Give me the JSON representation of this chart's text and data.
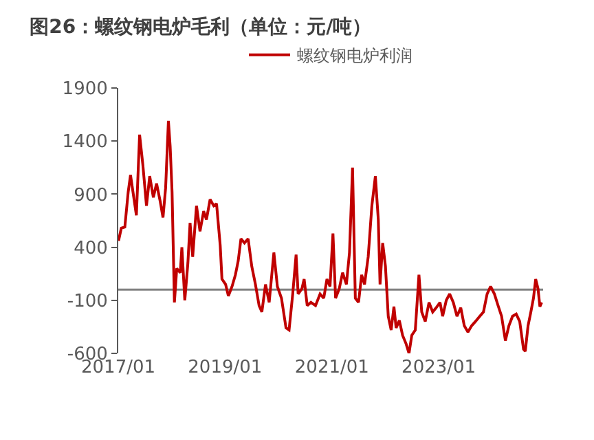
{
  "chart_data": {
    "type": "line",
    "title": "图26：螺纹钢电炉毛利（单位：元/吨）",
    "x": [
      "2017-01-03",
      "2017-01-22",
      "2017-02-15",
      "2017-03-10",
      "2017-03-26",
      "2017-04-17",
      "2017-05-05",
      "2017-05-27",
      "2017-06-18",
      "2017-07-13",
      "2017-08-04",
      "2017-08-29",
      "2017-09-20",
      "2017-10-15",
      "2017-11-03",
      "2017-11-21",
      "2017-12-10",
      "2017-12-22",
      "2018-01-04",
      "2018-01-20",
      "2018-02-05",
      "2018-03-01",
      "2018-03-12",
      "2018-04-01",
      "2018-04-22",
      "2018-05-07",
      "2018-05-25",
      "2018-06-20",
      "2018-07-14",
      "2018-08-08",
      "2018-08-27",
      "2018-09-21",
      "2018-10-16",
      "2018-11-04",
      "2018-11-29",
      "2018-12-11",
      "2019-01-05",
      "2019-01-24",
      "2019-02-18",
      "2019-03-13",
      "2019-04-01",
      "2019-04-20",
      "2019-05-14",
      "2019-06-08",
      "2019-07-03",
      "2019-07-28",
      "2019-08-22",
      "2019-09-10",
      "2019-10-05",
      "2019-10-30",
      "2019-12-01",
      "2019-12-25",
      "2020-01-22",
      "2020-02-22",
      "2020-03-14",
      "2020-04-08",
      "2020-05-01",
      "2020-05-15",
      "2020-06-10",
      "2020-06-25",
      "2020-07-16",
      "2020-08-10",
      "2020-09-11",
      "2020-10-12",
      "2020-11-06",
      "2020-11-28",
      "2020-12-19",
      "2021-01-08",
      "2021-01-26",
      "2021-02-20",
      "2021-03-15",
      "2021-04-10",
      "2021-05-01",
      "2021-05-22",
      "2021-06-10",
      "2021-07-02",
      "2021-07-23",
      "2021-08-12",
      "2021-09-06",
      "2021-10-01",
      "2021-10-25",
      "2021-11-14",
      "2021-11-26",
      "2021-12-14",
      "2022-01-02",
      "2022-01-21",
      "2022-02-10",
      "2022-03-01",
      "2022-03-16",
      "2022-04-07",
      "2022-04-29",
      "2022-05-23",
      "2022-06-12",
      "2022-07-01",
      "2022-07-25",
      "2022-08-19",
      "2022-09-07",
      "2022-10-01",
      "2022-10-27",
      "2022-11-21",
      "2022-12-15",
      "2023-01-10",
      "2023-01-28",
      "2023-02-22",
      "2023-03-17",
      "2023-04-11",
      "2023-05-06",
      "2023-06-01",
      "2023-06-25",
      "2023-07-20",
      "2023-08-14",
      "2023-09-09",
      "2023-10-09",
      "2023-11-03",
      "2023-11-28",
      "2023-12-22",
      "2024-01-17",
      "2024-02-11",
      "2024-03-06",
      "2024-04-01",
      "2024-04-25",
      "2024-05-20",
      "2024-06-14",
      "2024-07-08",
      "2024-08-03",
      "2024-08-15",
      "2024-09-03",
      "2024-09-22",
      "2024-10-10",
      "2024-10-25",
      "2024-11-10",
      "2024-11-23",
      "2024-12-05"
    ],
    "series": [
      {
        "name": "螺纹钢电炉利润",
        "color": "#c00000",
        "values": [
          460,
          580,
          590,
          920,
          1080,
          870,
          700,
          1460,
          1180,
          790,
          1070,
          870,
          1000,
          830,
          680,
          960,
          1590,
          1350,
          920,
          -120,
          200,
          160,
          400,
          -100,
          250,
          630,
          310,
          790,
          550,
          740,
          660,
          850,
          790,
          810,
          420,
          100,
          50,
          -60,
          30,
          140,
          270,
          480,
          440,
          480,
          220,
          50,
          -150,
          -210,
          50,
          -120,
          350,
          30,
          -80,
          -360,
          -380,
          -40,
          330,
          -40,
          10,
          100,
          -150,
          -120,
          -150,
          -40,
          -80,
          100,
          30,
          530,
          -80,
          10,
          160,
          50,
          350,
          1150,
          -80,
          -120,
          140,
          50,
          310,
          790,
          1070,
          660,
          50,
          440,
          220,
          -250,
          -380,
          -160,
          -360,
          -290,
          -430,
          -510,
          -600,
          -430,
          -380,
          140,
          -210,
          -300,
          -120,
          -210,
          -170,
          -120,
          -250,
          -100,
          -40,
          -120,
          -250,
          -170,
          -340,
          -400,
          -340,
          -300,
          -250,
          -210,
          -40,
          30,
          -40,
          -150,
          -250,
          -480,
          -340,
          -250,
          -230,
          -300,
          -560,
          -580,
          -340,
          -210,
          -80,
          100,
          10,
          -160,
          -120
        ]
      }
    ],
    "xlim": [
      "2017-01-01",
      "2024-12-15"
    ],
    "xticks": [
      {
        "value": "2017-01-01",
        "label": "2017/01"
      },
      {
        "value": "2019-01-01",
        "label": "2019/01"
      },
      {
        "value": "2021-01-01",
        "label": "2021/01"
      },
      {
        "value": "2023-01-01",
        "label": "2023/01"
      }
    ],
    "ylim": [
      -600,
      1900
    ],
    "yticks": [
      -600,
      -100,
      400,
      900,
      1400,
      1900
    ],
    "ref_lines": [
      {
        "axis": "y",
        "value": 0,
        "color": "#808080"
      }
    ],
    "legend": "top",
    "marker": "none",
    "line_style": "solid"
  }
}
